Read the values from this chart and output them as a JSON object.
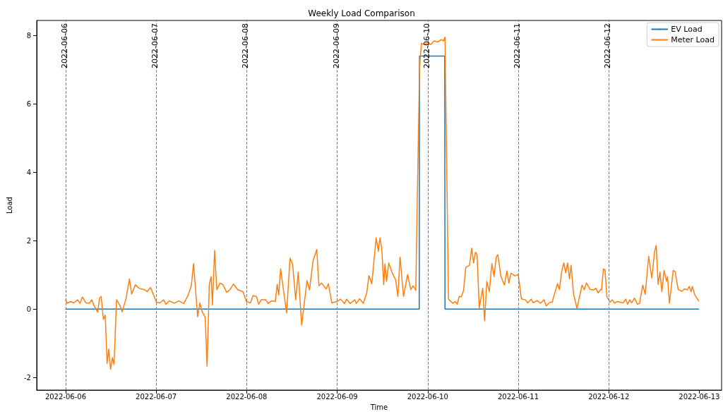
{
  "chart_data": {
    "type": "line",
    "title": "Weekly Load Comparison",
    "xlabel": "Time",
    "ylabel": "Load",
    "xlim": [
      "2022-06-05T16:20",
      "2022-06-13T05:55"
    ],
    "xticks": [
      "2022-06-06",
      "2022-06-07",
      "2022-06-08",
      "2022-06-09",
      "2022-06-10",
      "2022-06-11",
      "2022-06-12",
      "2022-06-13"
    ],
    "ylim": [
      -2.37,
      8.44
    ],
    "yticks": [
      -2,
      0,
      2,
      4,
      6,
      8
    ],
    "grid": false,
    "legend": "top right",
    "ref_lines": [
      {
        "axis": "x",
        "value": "2022-06-06",
        "label": "2022-06-06",
        "color": "#808080",
        "line_style": "dashed"
      },
      {
        "axis": "x",
        "value": "2022-06-07",
        "label": "2022-06-07",
        "color": "#808080",
        "line_style": "dashed"
      },
      {
        "axis": "x",
        "value": "2022-06-08",
        "label": "2022-06-08",
        "color": "#808080",
        "line_style": "dashed"
      },
      {
        "axis": "x",
        "value": "2022-06-09",
        "label": "2022-06-09",
        "color": "#808080",
        "line_style": "dashed"
      },
      {
        "axis": "x",
        "value": "2022-06-10",
        "label": "2022-06-10",
        "color": "#808080",
        "line_style": "dashed"
      },
      {
        "axis": "x",
        "value": "2022-06-11",
        "label": "2022-06-11",
        "color": "#808080",
        "line_style": "dashed"
      },
      {
        "axis": "x",
        "value": "2022-06-12",
        "label": "2022-06-12",
        "color": "#808080",
        "line_style": "dashed"
      }
    ],
    "series": [
      {
        "name": "EV Load",
        "color": "#1f77b4",
        "x": [
          "2022-06-06T00:00",
          "2022-06-09T21:45",
          "2022-06-09T21:50",
          "2022-06-10T04:30",
          "2022-06-10T04:35",
          "2022-06-12T23:50"
        ],
        "values": [
          0,
          0,
          7.4,
          7.4,
          0,
          0
        ]
      },
      {
        "name": "Meter Load",
        "color": "#ff7f0e",
        "x": [
          "2022-06-06T00:00",
          "2022-06-06T00:25",
          "2022-06-06T01:20",
          "2022-06-06T02:10",
          "2022-06-06T03:10",
          "2022-06-06T03:50",
          "2022-06-06T04:25",
          "2022-06-06T05:25",
          "2022-06-06T06:20",
          "2022-06-06T06:55",
          "2022-06-06T07:30",
          "2022-06-06T08:30",
          "2022-06-06T09:00",
          "2022-06-06T09:25",
          "2022-06-06T10:00",
          "2022-06-06T10:30",
          "2022-06-06T11:00",
          "2022-06-06T11:25",
          "2022-06-06T11:55",
          "2022-06-06T12:25",
          "2022-06-06T12:50",
          "2022-06-06T13:30",
          "2022-06-06T14:25",
          "2022-06-06T15:00",
          "2022-06-06T16:00",
          "2022-06-06T16:55",
          "2022-06-06T17:30",
          "2022-06-06T18:30",
          "2022-06-06T19:25",
          "2022-06-06T21:00",
          "2022-06-06T21:35",
          "2022-06-06T22:30",
          "2022-06-07T00:05",
          "2022-06-07T01:00",
          "2022-06-07T02:00",
          "2022-06-07T02:35",
          "2022-06-07T03:30",
          "2022-06-07T04:50",
          "2022-06-07T06:00",
          "2022-06-07T07:20",
          "2022-06-07T08:30",
          "2022-06-07T09:20",
          "2022-06-07T09:55",
          "2022-06-07T11:00",
          "2022-06-07T11:35",
          "2022-06-07T12:10",
          "2022-06-07T13:00",
          "2022-06-07T13:30",
          "2022-06-07T14:05",
          "2022-06-07T14:35",
          "2022-06-07T14:55",
          "2022-06-07T15:30",
          "2022-06-07T16:05",
          "2022-06-07T16:55",
          "2022-06-07T17:40",
          "2022-06-07T18:40",
          "2022-06-07T19:30",
          "2022-06-07T20:30",
          "2022-06-07T21:40",
          "2022-06-07T23:00",
          "2022-06-07T23:55",
          "2022-06-08T01:00",
          "2022-06-08T01:40",
          "2022-06-08T02:35",
          "2022-06-08T03:10",
          "2022-06-08T03:50",
          "2022-06-08T05:05",
          "2022-06-08T05:40",
          "2022-06-08T06:35",
          "2022-06-08T07:35",
          "2022-06-08T08:05",
          "2022-06-08T08:30",
          "2022-06-08T09:00",
          "2022-06-08T10:35",
          "2022-06-08T11:30",
          "2022-06-08T12:10",
          "2022-06-08T13:00",
          "2022-06-08T13:40",
          "2022-06-08T14:35",
          "2022-06-08T16:00",
          "2022-06-08T16:40",
          "2022-06-08T17:35",
          "2022-06-08T18:35",
          "2022-06-08T19:10",
          "2022-06-08T19:50",
          "2022-06-08T21:05",
          "2022-06-08T21:40",
          "2022-06-08T22:35",
          "2022-06-08T23:55",
          "2022-06-09T00:55",
          "2022-06-09T01:55",
          "2022-06-09T02:30",
          "2022-06-09T03:25",
          "2022-06-09T04:40",
          "2022-06-09T05:05",
          "2022-06-09T05:55",
          "2022-06-09T06:55",
          "2022-06-09T07:50",
          "2022-06-09T08:25",
          "2022-06-09T09:10",
          "2022-06-09T10:20",
          "2022-06-09T10:55",
          "2022-06-09T11:20",
          "2022-06-09T11:50",
          "2022-06-09T12:20",
          "2022-06-09T12:40",
          "2022-06-09T13:05",
          "2022-06-09T13:40",
          "2022-06-09T14:30",
          "2022-06-09T15:30",
          "2022-06-09T16:05",
          "2022-06-09T16:40",
          "2022-06-09T17:35",
          "2022-06-09T18:40",
          "2022-06-09T19:30",
          "2022-06-09T20:10",
          "2022-06-09T20:50",
          "2022-06-09T21:50",
          "2022-06-09T22:20",
          "2022-06-09T22:55",
          "2022-06-09T23:50",
          "2022-06-10T00:50",
          "2022-06-10T01:40",
          "2022-06-10T02:40",
          "2022-06-10T03:35",
          "2022-06-10T04:10",
          "2022-06-10T04:35",
          "2022-06-10T05:30",
          "2022-06-10T05:40",
          "2022-06-10T06:40",
          "2022-06-10T07:20",
          "2022-06-10T07:50",
          "2022-06-10T08:20",
          "2022-06-10T08:55",
          "2022-06-10T09:30",
          "2022-06-10T10:05",
          "2022-06-10T11:05",
          "2022-06-10T11:40",
          "2022-06-10T12:10",
          "2022-06-10T12:40",
          "2022-06-10T13:05",
          "2022-06-10T13:40",
          "2022-06-10T14:35",
          "2022-06-10T15:05",
          "2022-06-10T15:40",
          "2022-06-10T16:20",
          "2022-06-10T17:00",
          "2022-06-10T17:35",
          "2022-06-10T18:10",
          "2022-06-10T18:35",
          "2022-06-10T19:25",
          "2022-06-10T20:20",
          "2022-06-10T21:00",
          "2022-06-10T21:30",
          "2022-06-10T22:05",
          "2022-06-10T23:05",
          "2022-06-11T00:00",
          "2022-06-11T00:50",
          "2022-06-11T01:55",
          "2022-06-11T02:30",
          "2022-06-11T03:25",
          "2022-06-11T04:00",
          "2022-06-11T05:00",
          "2022-06-11T05:55",
          "2022-06-11T06:50",
          "2022-06-11T07:25",
          "2022-06-11T08:25",
          "2022-06-11T09:00",
          "2022-06-11T09:35",
          "2022-06-11T10:25",
          "2022-06-11T10:55",
          "2022-06-11T11:30",
          "2022-06-11T12:05",
          "2022-06-11T12:35",
          "2022-06-11T13:05",
          "2022-06-11T13:35",
          "2022-06-11T14:00",
          "2022-06-11T14:40",
          "2022-06-11T15:35",
          "2022-06-11T16:55",
          "2022-06-11T17:30",
          "2022-06-11T18:05",
          "2022-06-11T19:05",
          "2022-06-11T20:00",
          "2022-06-11T20:35",
          "2022-06-11T21:10",
          "2022-06-11T21:50",
          "2022-06-11T22:05",
          "2022-06-11T22:35",
          "2022-06-11T23:00",
          "2022-06-11T23:30",
          "2022-06-12T00:20",
          "2022-06-12T00:55",
          "2022-06-12T01:35",
          "2022-06-12T02:10",
          "2022-06-12T03:50",
          "2022-06-12T04:30",
          "2022-06-12T05:00",
          "2022-06-12T05:35",
          "2022-06-12T06:05",
          "2022-06-12T06:50",
          "2022-06-12T07:35",
          "2022-06-12T08:10",
          "2022-06-12T09:00",
          "2022-06-12T09:40",
          "2022-06-12T10:35",
          "2022-06-12T11:25",
          "2022-06-12T12:10",
          "2022-06-12T12:35",
          "2022-06-12T13:05",
          "2022-06-12T13:35",
          "2022-06-12T14:05",
          "2022-06-12T14:40",
          "2022-06-12T15:20",
          "2022-06-12T15:35",
          "2022-06-12T16:05",
          "2022-06-12T17:05",
          "2022-06-12T17:35",
          "2022-06-12T18:25",
          "2022-06-12T19:25",
          "2022-06-12T20:05",
          "2022-06-12T20:50",
          "2022-06-12T21:20",
          "2022-06-12T21:50",
          "2022-06-12T22:10",
          "2022-06-12T22:50",
          "2022-06-12T23:50"
        ],
        "values": [
          0.27,
          0.17,
          0.22,
          0.18,
          0.27,
          0.17,
          0.35,
          0.18,
          0.17,
          0.27,
          0.11,
          -0.09,
          0.32,
          0.37,
          -0.3,
          -0.18,
          -1.59,
          -1.17,
          -1.76,
          -1.42,
          -1.62,
          0.27,
          0.1,
          -0.08,
          0.3,
          0.88,
          0.44,
          0.71,
          0.61,
          0.56,
          0.51,
          0.63,
          0.2,
          0.18,
          0.27,
          0.14,
          0.24,
          0.17,
          0.24,
          0.16,
          0.41,
          0.69,
          1.33,
          -0.22,
          0.18,
          -0.07,
          -0.24,
          -1.67,
          0.71,
          0.95,
          0.12,
          1.71,
          0.57,
          0.76,
          0.72,
          0.49,
          0.56,
          0.73,
          0.56,
          0.51,
          0.22,
          0.18,
          0.39,
          0.37,
          0.14,
          0.27,
          0.27,
          0.16,
          0.24,
          0.22,
          0.72,
          0.41,
          1.18,
          -0.12,
          1.49,
          1.32,
          0.27,
          1.08,
          -0.47,
          0.83,
          0.56,
          1.4,
          1.74,
          0.68,
          0.76,
          0.59,
          0.74,
          0.18,
          0.22,
          0.29,
          0.16,
          0.29,
          0.16,
          0.27,
          0.16,
          0.3,
          0.17,
          0.47,
          0.98,
          0.74,
          2.08,
          1.69,
          2.08,
          1.76,
          0.71,
          1.32,
          0.81,
          1.35,
          1.08,
          0.85,
          0.37,
          1.52,
          0.37,
          1.01,
          0.57,
          0.68,
          0.54,
          7.07,
          7.77,
          7.74,
          7.77,
          7.74,
          7.84,
          7.81,
          7.88,
          7.84,
          7.95,
          0.3,
          0.27,
          0.17,
          0.22,
          0.14,
          0.37,
          0.36,
          0.54,
          1.22,
          1.28,
          1.78,
          1.35,
          1.66,
          1.59,
          0.03,
          0.61,
          -0.34,
          0.81,
          0.51,
          1.33,
          0.95,
          1.52,
          1.59,
          0.95,
          0.7,
          1.12,
          0.76,
          1.05,
          0.97,
          1.01,
          0.3,
          0.27,
          0.18,
          0.29,
          0.18,
          0.25,
          0.17,
          0.27,
          0.09,
          0.2,
          0.2,
          0.43,
          0.74,
          0.57,
          1.08,
          1.35,
          1.06,
          1.35,
          0.88,
          1.28,
          0.44,
          0.02,
          0.7,
          0.56,
          0.76,
          0.57,
          0.56,
          0.61,
          0.47,
          0.57,
          0.56,
          1.17,
          1.15,
          0.36,
          0.2,
          0.27,
          0.17,
          0.22,
          0.18,
          0.29,
          0.14,
          0.27,
          0.18,
          0.32,
          0.14,
          0.17,
          0.7,
          0.43,
          1.54,
          0.91,
          1.69,
          1.86,
          0.72,
          1.08,
          0.51,
          1.13,
          0.81,
          0.95,
          0.17,
          1.13,
          1.1,
          0.57,
          0.52,
          0.59,
          0.56,
          0.66,
          0.51,
          0.66,
          0.41,
          0.24
        ]
      }
    ]
  }
}
